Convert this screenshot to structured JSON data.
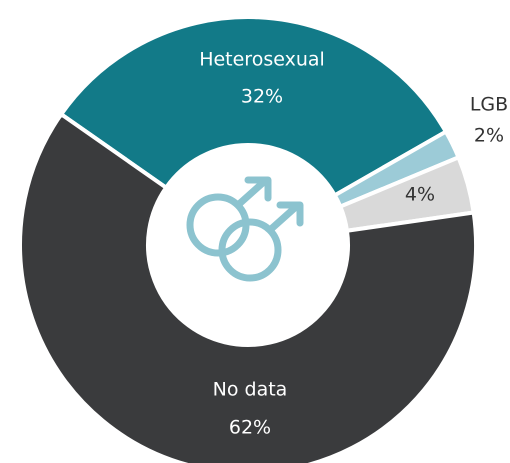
{
  "chart_data": {
    "type": "donut",
    "categories": [
      "Heterosexual",
      "LGB",
      null,
      "No data"
    ],
    "values": [
      32,
      2,
      4,
      62
    ],
    "value_labels": [
      "32%",
      "2%",
      "4%",
      "62%"
    ],
    "colors": [
      "#127a88",
      "#9ccbd7",
      "#d9d9d9",
      "#3a3b3d"
    ]
  }
}
